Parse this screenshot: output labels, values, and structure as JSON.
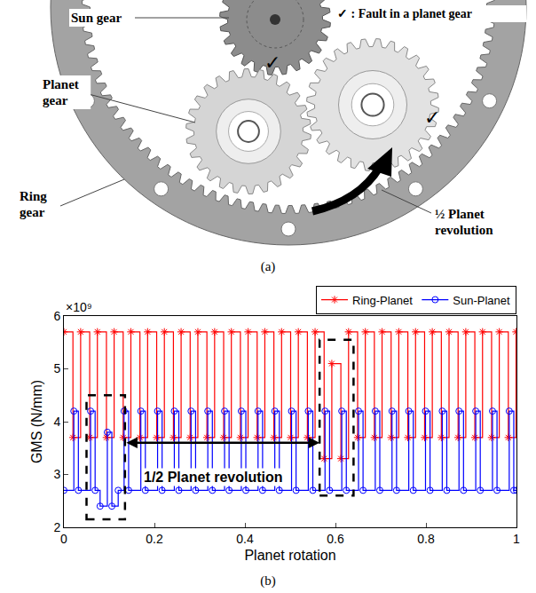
{
  "diagram": {
    "fault_mark": "✓",
    "fault_legend": ": Fault in a planet gear",
    "labels": {
      "sun": [
        "Sun gear"
      ],
      "planet": [
        "Planet",
        "gear"
      ],
      "ring": [
        "Ring",
        "gear"
      ],
      "revolution": [
        "½ Planet",
        "revolution"
      ]
    }
  },
  "captions": [
    "(a)",
    "(b)"
  ],
  "chart_data": {
    "type": "line",
    "x_label": "Planet rotation",
    "y_label": "GMS (N/mm)",
    "y_scale_label": "×10⁹",
    "xlim": [
      0,
      1
    ],
    "xticks": [
      0,
      0.2,
      0.4,
      0.6,
      0.8,
      1
    ],
    "ylim": [
      2,
      6
    ],
    "yticks": [
      2,
      3,
      4,
      5,
      6
    ],
    "legend": "above",
    "series": [
      {
        "name": "Ring-Planet",
        "color": "#ff0000",
        "marker": "asterisk-open",
        "line_style": "step",
        "x": [
          0,
          0.02,
          0.037,
          0.057,
          0.074,
          0.094,
          0.111,
          0.131,
          0.148,
          0.168,
          0.185,
          0.205,
          0.222,
          0.242,
          0.259,
          0.279,
          0.296,
          0.316,
          0.333,
          0.353,
          0.37,
          0.39,
          0.407,
          0.427,
          0.444,
          0.464,
          0.481,
          0.501,
          0.518,
          0.538,
          0.555,
          0.575,
          0.592,
          0.612,
          0.629,
          0.649,
          0.666,
          0.686,
          0.703,
          0.723,
          0.74,
          0.76,
          0.777,
          0.797,
          0.814,
          0.834,
          0.851,
          0.871,
          0.888,
          0.908,
          0.925,
          0.945,
          0.962,
          0.982,
          0.999
        ],
        "values": [
          5.7,
          3.7,
          5.7,
          3.7,
          5.7,
          3.7,
          5.7,
          3.7,
          5.7,
          3.7,
          5.7,
          3.7,
          5.7,
          3.7,
          5.7,
          3.7,
          5.7,
          3.7,
          5.7,
          3.7,
          5.7,
          3.7,
          5.7,
          3.7,
          5.7,
          3.7,
          5.7,
          3.7,
          5.7,
          3.7,
          5.7,
          3.3,
          5.1,
          3.3,
          5.7,
          3.7,
          5.7,
          3.7,
          5.7,
          3.7,
          5.7,
          3.7,
          5.7,
          3.7,
          5.7,
          3.7,
          5.7,
          3.7,
          5.7,
          3.7,
          5.7,
          3.7,
          5.7,
          3.7,
          5.7
        ]
      },
      {
        "name": "Sun-Planet",
        "color": "#0000ff",
        "marker": "circle-open",
        "line_style": "step",
        "x": [
          0,
          0.022,
          0.032,
          0.059,
          0.069,
          0.08,
          0.096,
          0.106,
          0.12,
          0.133,
          0.143,
          0.17,
          0.18,
          0.207,
          0.217,
          0.244,
          0.254,
          0.281,
          0.291,
          0.318,
          0.328,
          0.355,
          0.365,
          0.392,
          0.402,
          0.429,
          0.439,
          0.466,
          0.476,
          0.503,
          0.513,
          0.54,
          0.55,
          0.577,
          0.587,
          0.614,
          0.624,
          0.651,
          0.661,
          0.688,
          0.698,
          0.725,
          0.735,
          0.762,
          0.772,
          0.799,
          0.809,
          0.836,
          0.846,
          0.873,
          0.883,
          0.91,
          0.92,
          0.947,
          0.957,
          0.984,
          0.994,
          1
        ],
        "values": [
          2.7,
          4.2,
          2.7,
          4.2,
          2.7,
          2.4,
          3.8,
          2.4,
          2.7,
          4.2,
          2.7,
          4.2,
          2.7,
          4.2,
          2.7,
          4.2,
          2.7,
          4.2,
          2.7,
          4.2,
          2.7,
          4.2,
          2.7,
          4.2,
          2.7,
          4.2,
          2.7,
          4.2,
          2.7,
          4.2,
          2.7,
          4.2,
          2.7,
          4.2,
          2.7,
          4.2,
          2.7,
          4.2,
          2.7,
          4.2,
          2.7,
          4.2,
          2.7,
          4.2,
          2.7,
          4.2,
          2.7,
          4.2,
          2.7,
          4.2,
          2.7,
          4.2,
          2.7,
          4.2,
          2.7,
          4.2,
          2.7,
          2.7
        ]
      }
    ],
    "boxes": [
      {
        "x": [
          0.05,
          0.135
        ],
        "y": [
          2.15,
          4.5
        ]
      },
      {
        "x": [
          0.565,
          0.64
        ],
        "y": [
          2.6,
          5.55
        ]
      }
    ],
    "arrows": [
      {
        "x": [
          0.135,
          0.565
        ],
        "y": 3.6
      }
    ],
    "annotations": [
      {
        "text": "1/2 Planet revolution",
        "x": 0.33,
        "y": 2.95
      }
    ]
  }
}
